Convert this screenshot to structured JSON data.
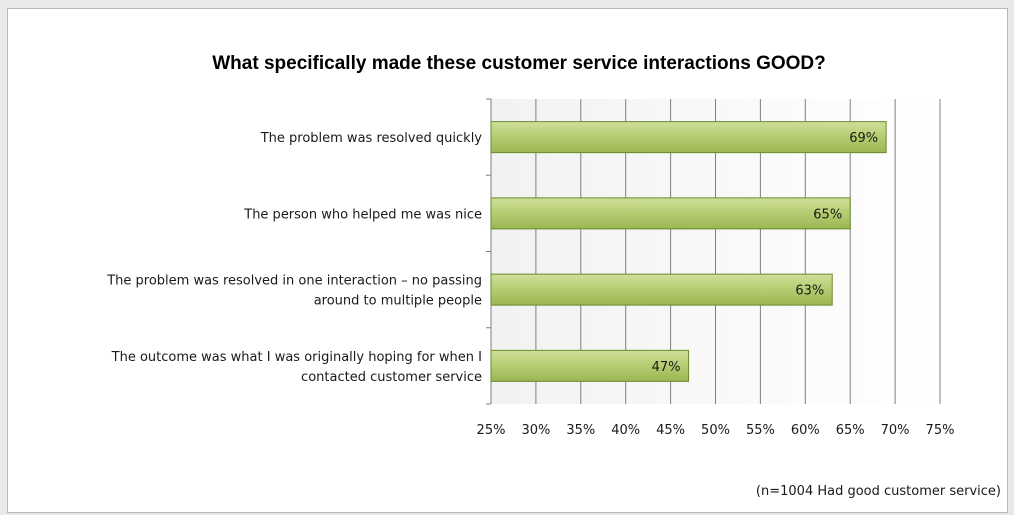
{
  "chart_data": {
    "type": "bar",
    "orientation": "horizontal",
    "title": "What specifically made these customer service interactions GOOD?",
    "categories": [
      [
        "The problem was resolved quickly"
      ],
      [
        "The person who helped me was nice"
      ],
      [
        "The problem was resolved in one interaction – no passing",
        "around to multiple people"
      ],
      [
        "The outcome was  what I was originally hoping for when I",
        "contacted customer service"
      ]
    ],
    "values": [
      69,
      65,
      63,
      47
    ],
    "data_labels": [
      "69%",
      "65%",
      "63%",
      "47%"
    ],
    "xlim": [
      25,
      75
    ],
    "xticks": [
      25,
      30,
      35,
      40,
      45,
      50,
      55,
      60,
      65,
      70,
      75
    ],
    "xtick_labels": [
      "25%",
      "30%",
      "35%",
      "40%",
      "45%",
      "50%",
      "55%",
      "60%",
      "65%",
      "70%",
      "75%"
    ],
    "grid": true,
    "legend": false,
    "bar_color": "#b5cc70",
    "bar_edge_color": "#6b8a2a",
    "note": "(n=1004 Had good customer service)"
  }
}
